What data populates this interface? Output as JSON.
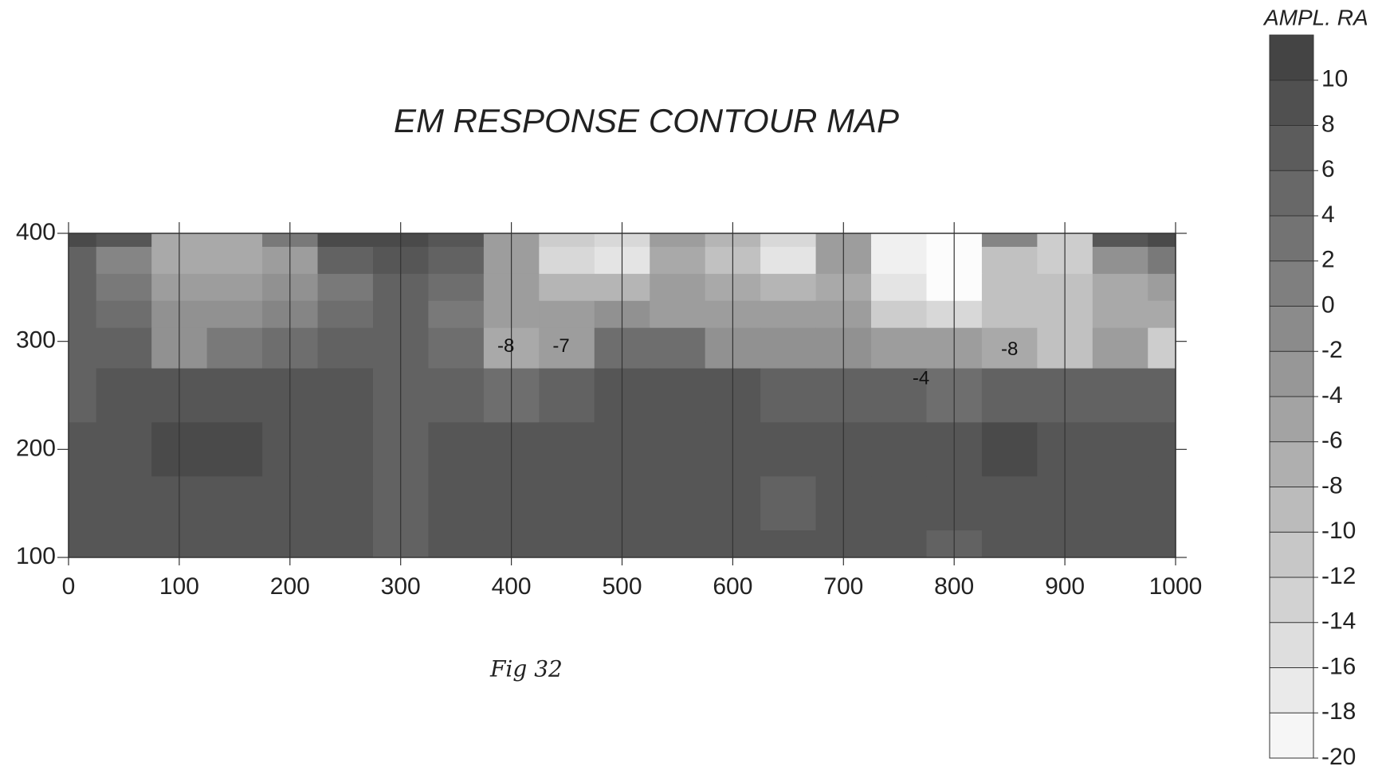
{
  "chart_data": {
    "type": "contour",
    "title": "EM RESPONSE CONTOUR MAP",
    "caption": "Fig 32",
    "colorbar_label": "AMPL. RA",
    "x": [
      0,
      50,
      100,
      150,
      200,
      250,
      300,
      350,
      400,
      450,
      500,
      550,
      600,
      650,
      700,
      750,
      800,
      850,
      900,
      950,
      1000
    ],
    "y": [
      400,
      375,
      350,
      325,
      300,
      250,
      200,
      150,
      100
    ],
    "z": [
      [
        10,
        8,
        -6,
        -6,
        2,
        10,
        10,
        8,
        -4,
        -12,
        -14,
        -4,
        -8,
        -14,
        -4,
        -18,
        -20,
        0,
        -12,
        8,
        10
      ],
      [
        6,
        0,
        -6,
        -6,
        -4,
        6,
        8,
        6,
        -4,
        -14,
        -16,
        -6,
        -10,
        -16,
        -4,
        -18,
        -20,
        -10,
        -12,
        -2,
        2
      ],
      [
        6,
        2,
        -4,
        -4,
        -2,
        2,
        6,
        4,
        -4,
        -8,
        -8,
        -4,
        -6,
        -8,
        -6,
        -16,
        -20,
        -10,
        -10,
        -6,
        -4
      ],
      [
        6,
        4,
        -2,
        -2,
        0,
        4,
        6,
        2,
        -4,
        -4,
        -2,
        -4,
        -4,
        -4,
        -4,
        -12,
        -14,
        -10,
        -10,
        -6,
        -6
      ],
      [
        6,
        6,
        -2,
        2,
        4,
        6,
        6,
        4,
        -6,
        -4,
        4,
        4,
        -2,
        -2,
        -2,
        -4,
        -4,
        -6,
        -10,
        -4,
        -12
      ],
      [
        6,
        8,
        8,
        8,
        8,
        8,
        6,
        6,
        4,
        6,
        8,
        8,
        8,
        6,
        6,
        6,
        4,
        6,
        6,
        6,
        6
      ],
      [
        8,
        8,
        10,
        10,
        8,
        8,
        6,
        8,
        8,
        8,
        8,
        8,
        8,
        8,
        8,
        8,
        8,
        10,
        8,
        8,
        8
      ],
      [
        8,
        8,
        8,
        8,
        8,
        8,
        6,
        8,
        8,
        8,
        8,
        8,
        8,
        6,
        8,
        8,
        8,
        8,
        8,
        8,
        8
      ],
      [
        8,
        8,
        8,
        8,
        8,
        8,
        6,
        8,
        8,
        8,
        8,
        8,
        8,
        8,
        8,
        8,
        6,
        8,
        8,
        8,
        8
      ]
    ],
    "contour_labels": [
      "-8",
      "-7",
      "-4",
      "-8"
    ],
    "xlim": [
      0,
      1000
    ],
    "xticks": [
      0,
      100,
      200,
      300,
      400,
      500,
      600,
      700,
      800,
      900,
      1000
    ],
    "ylim": [
      100,
      400
    ],
    "yticks": [
      100,
      200,
      300,
      400
    ],
    "zlim": [
      -20,
      12
    ],
    "zticks": [
      -20,
      -18,
      -16,
      -14,
      -12,
      -10,
      -8,
      -6,
      -4,
      -2,
      0,
      2,
      4,
      6,
      8,
      10
    ]
  }
}
